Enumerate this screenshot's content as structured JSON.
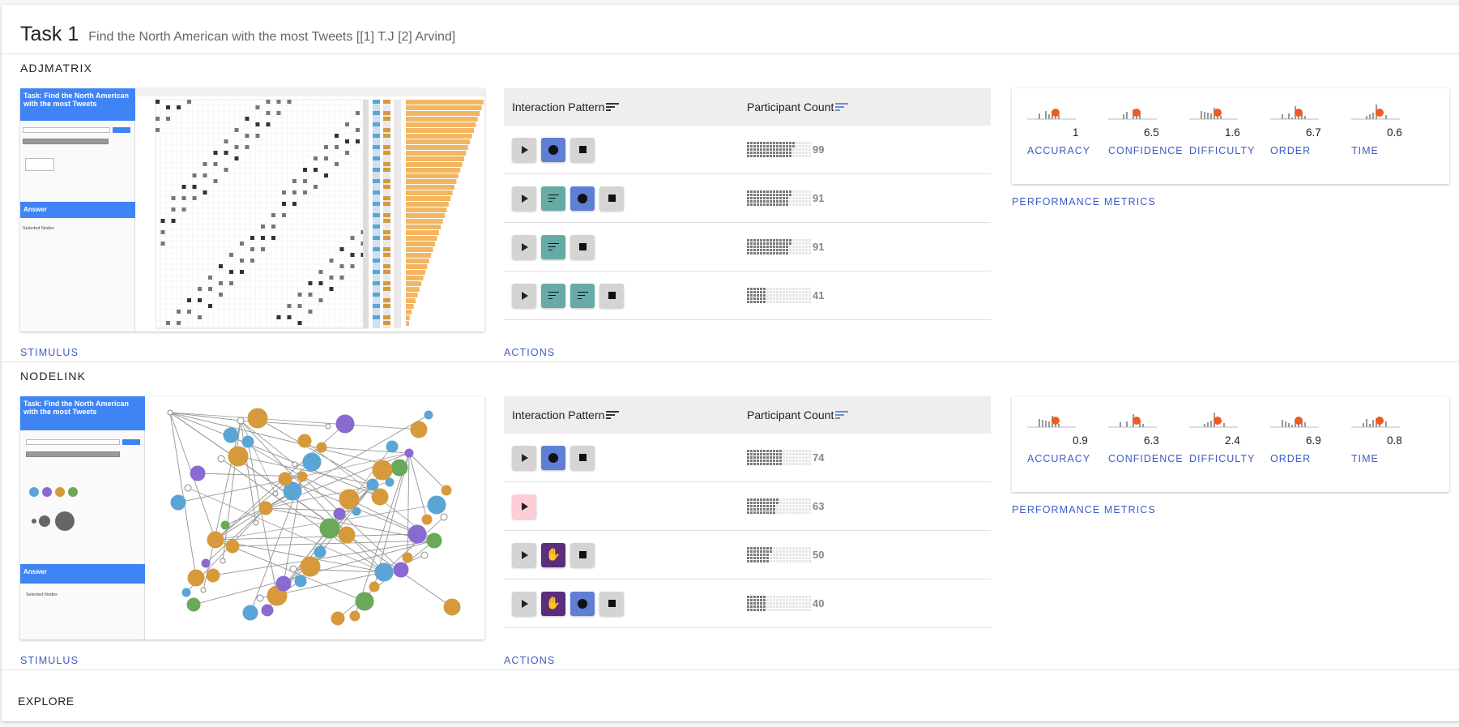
{
  "task": {
    "title": "Task 1",
    "description": "Find the North American with the most Tweets [[1] T.J [2] Arvind]"
  },
  "links": {
    "stimulus": "STIMULUS",
    "actions": "ACTIONS",
    "performance": "PERFORMANCE METRICS",
    "explore": "EXPLORE"
  },
  "table_headers": {
    "pattern": "Interaction Pattern",
    "count": "Participant Count"
  },
  "sections": [
    {
      "name": "ADJMATRIX",
      "stimulus_task": "Task: Find the North American with the most Tweets",
      "stimulus_answer": "Answer",
      "stimulus_selected": "Selected Nodes",
      "metrics": [
        {
          "label": "ACCURACY",
          "value": "1"
        },
        {
          "label": "CONFIDENCE",
          "value": "6.5"
        },
        {
          "label": "DIFFICULTY",
          "value": "1.6"
        },
        {
          "label": "ORDER",
          "value": "6.7"
        },
        {
          "label": "TIME",
          "value": "0.6"
        }
      ],
      "rows": [
        {
          "buttons": [
            "play-grey",
            "dot-blue",
            "stop-grey"
          ],
          "count": "99",
          "fraction": 0.72
        },
        {
          "buttons": [
            "play-grey",
            "sort-teal",
            "dot-blue",
            "stop-grey"
          ],
          "count": "91",
          "fraction": 0.67
        },
        {
          "buttons": [
            "play-grey",
            "sort-teal",
            "stop-grey"
          ],
          "count": "91",
          "fraction": 0.67
        },
        {
          "buttons": [
            "play-grey",
            "sort-teal",
            "sort-teal",
            "stop-grey"
          ],
          "count": "41",
          "fraction": 0.3
        }
      ]
    },
    {
      "name": "NODELINK",
      "stimulus_task": "Task: Find the North American with the most Tweets",
      "stimulus_answer": "Answer",
      "stimulus_selected": "Selected Nodes",
      "metrics": [
        {
          "label": "ACCURACY",
          "value": "0.9"
        },
        {
          "label": "CONFIDENCE",
          "value": "6.3"
        },
        {
          "label": "DIFFICULTY",
          "value": "2.4"
        },
        {
          "label": "ORDER",
          "value": "6.9"
        },
        {
          "label": "TIME",
          "value": "0.8"
        }
      ],
      "rows": [
        {
          "buttons": [
            "play-grey",
            "dot-blue",
            "stop-grey"
          ],
          "count": "74",
          "fraction": 0.55
        },
        {
          "buttons": [
            "play-pink"
          ],
          "count": "63",
          "fraction": 0.47
        },
        {
          "buttons": [
            "play-grey",
            "hand-purple",
            "stop-grey"
          ],
          "count": "50",
          "fraction": 0.37
        },
        {
          "buttons": [
            "play-grey",
            "hand-purple",
            "dot-blue",
            "stop-grey"
          ],
          "count": "40",
          "fraction": 0.3
        }
      ]
    }
  ],
  "colors": {
    "accent": "#3f5cc4",
    "node_blue": "#5aa4d6",
    "node_orange": "#d69a3c",
    "node_purple": "#8a6ad0",
    "node_green": "#6aa85a",
    "bar_orange": "#f2b662"
  }
}
